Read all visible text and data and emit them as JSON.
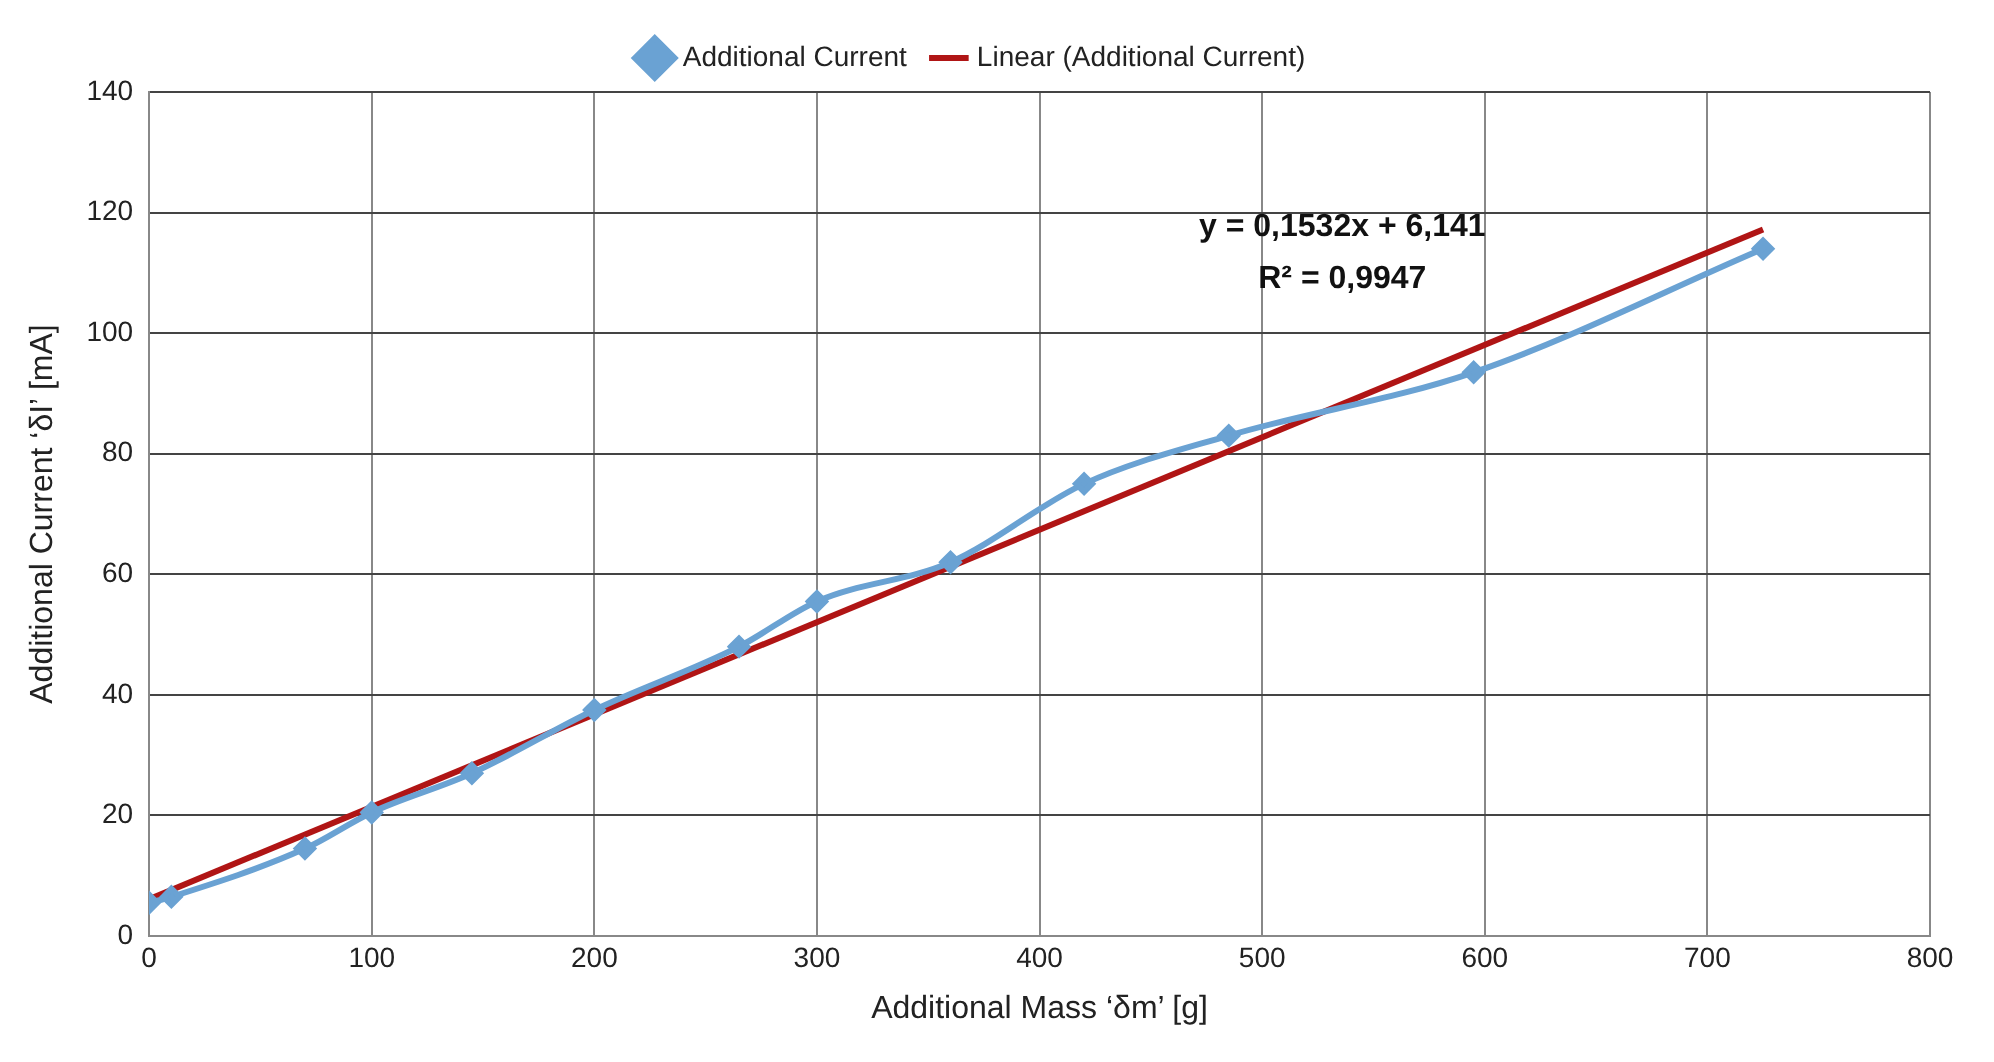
{
  "chart_data": {
    "type": "line",
    "xlabel": "Additional Mass ‘δm’ [g]",
    "ylabel": "Additional Current ‘δI’ [mA]",
    "series": [
      {
        "name": "Additional Current",
        "color": "#6aa2d3",
        "marker": "diamond",
        "x": [
          0,
          10,
          70,
          100,
          145,
          200,
          265,
          300,
          360,
          420,
          485,
          595,
          725
        ],
        "values": [
          5.5,
          6.5,
          14.5,
          20.5,
          27,
          37.5,
          48,
          55.5,
          62,
          75,
          83,
          93.5,
          114
        ]
      },
      {
        "name": "Linear (Additional Current)",
        "type": "line",
        "color": "#b01515",
        "marker": "none",
        "x": [
          0,
          725
        ],
        "values": [
          6.1,
          117.2
        ]
      }
    ],
    "annotations": [
      "y = 0,1532x + 6,141",
      "R² = 0,9947"
    ],
    "xlim": [
      0,
      800
    ],
    "xticks": [
      0,
      100,
      200,
      300,
      400,
      500,
      600,
      700,
      800
    ],
    "ylim": [
      0,
      140
    ],
    "yticks": [
      0,
      20,
      40,
      60,
      80,
      100,
      120,
      140
    ],
    "grid": true,
    "legend": "top"
  }
}
